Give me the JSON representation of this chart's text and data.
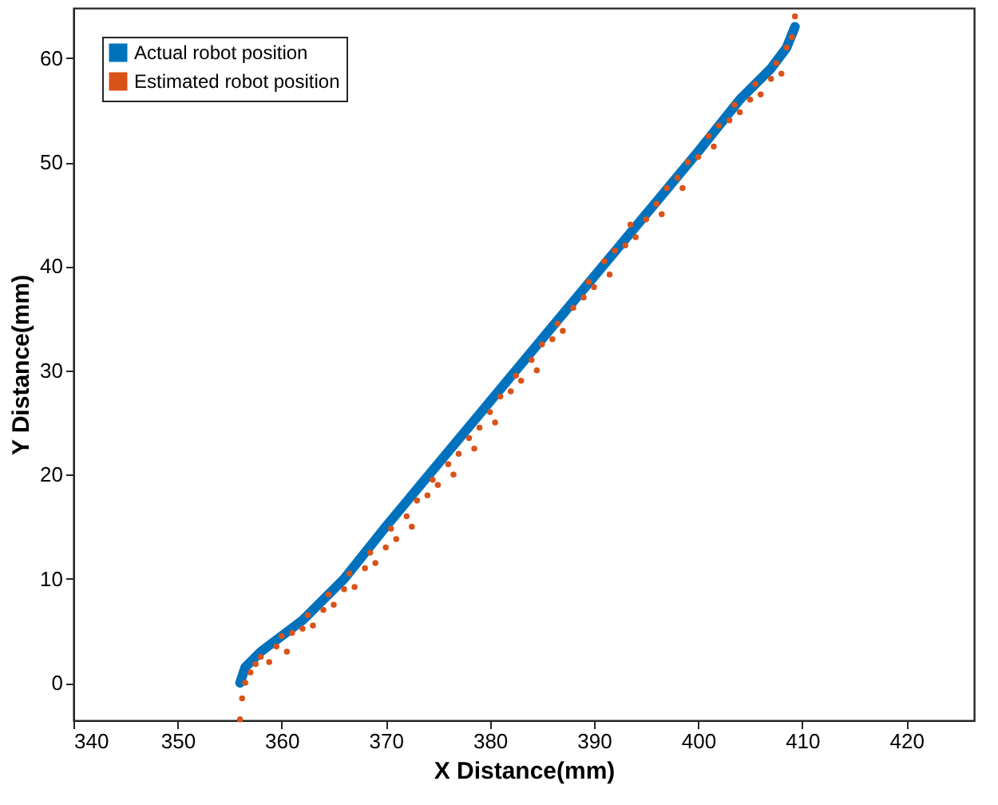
{
  "chart_data": {
    "type": "scatter",
    "xlabel": "X Distance(mm)",
    "ylabel": "Y Distance(mm)",
    "xlim": [
      340,
      426.5
    ],
    "xticks": [
      340,
      350,
      360,
      370,
      380,
      390,
      400,
      410,
      420
    ],
    "ylim": [
      -3.6,
      64.8
    ],
    "yticks": [
      0,
      10,
      20,
      30,
      40,
      50,
      60
    ],
    "grid": false,
    "legend": "top left",
    "series": [
      {
        "name": "Actual robot position",
        "type": "line",
        "color": "#0072bd",
        "x": [
          356,
          356.5,
          358,
          362,
          366,
          370,
          375,
          380,
          385,
          390,
          395,
          400,
          404,
          407,
          408.5,
          409.3
        ],
        "values": [
          0,
          1.5,
          3,
          6,
          10,
          15,
          21,
          27,
          33,
          39,
          45,
          51,
          56,
          59,
          61,
          63
        ]
      },
      {
        "name": "Estimated robot position",
        "marker": "circle",
        "color": "#d95319",
        "x": [
          356,
          356.2,
          356.5,
          357,
          357.5,
          358,
          358.8,
          359.5,
          360,
          360.5,
          361,
          362,
          362.5,
          363,
          364,
          364.5,
          365,
          366,
          366.5,
          367,
          368,
          368.5,
          369,
          370,
          370.5,
          371,
          372,
          372.5,
          373,
          374,
          374.5,
          375,
          376,
          376.5,
          377,
          378,
          378.5,
          379,
          380,
          380.5,
          381,
          382,
          382.5,
          383,
          384,
          384.5,
          385,
          386,
          386.5,
          387,
          388,
          389,
          389.5,
          390,
          391,
          391.5,
          392,
          393,
          393.5,
          394,
          395,
          396,
          396.5,
          397,
          398,
          398.5,
          399,
          400,
          401,
          401.5,
          402,
          403,
          403.5,
          404,
          405,
          405.5,
          406,
          407,
          407.5,
          408,
          408.5,
          409,
          409.3
        ],
        "values": [
          -3.5,
          -1.5,
          0,
          1,
          1.8,
          2.5,
          2,
          3.5,
          4.5,
          3,
          4.8,
          5.2,
          6.5,
          5.5,
          7,
          8.5,
          7.5,
          9,
          10.5,
          9.2,
          11,
          12.5,
          11.5,
          13,
          14.8,
          13.8,
          16,
          15,
          17.5,
          18,
          19.5,
          19,
          21,
          20,
          22,
          23.5,
          22.5,
          24.5,
          26,
          25,
          27.5,
          28,
          29.5,
          29,
          31,
          30,
          32.5,
          33,
          34.5,
          33.8,
          36,
          37,
          38.5,
          38,
          40.5,
          39.2,
          41.5,
          42,
          44,
          42.8,
          44.5,
          46,
          45,
          47.5,
          48.5,
          47.5,
          50,
          50.5,
          52.5,
          51.5,
          53.5,
          54,
          55.5,
          54.8,
          56,
          57.5,
          56.5,
          58,
          59.5,
          58.5,
          61,
          62,
          64
        ]
      }
    ]
  }
}
